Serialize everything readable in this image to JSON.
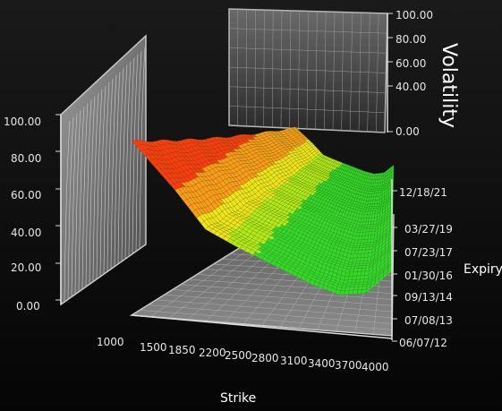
{
  "chart_data": {
    "type": "surface-3d",
    "x_axis": {
      "label": "Strike",
      "ticks": [
        "1000",
        "1500",
        "1850",
        "2200",
        "2500",
        "2800",
        "3100",
        "3400",
        "3700",
        "4000"
      ]
    },
    "y_axis": {
      "label": "Expiry",
      "ticks": [
        "06/07/12",
        "07/08/13",
        "09/13/14",
        "01/30/16",
        "07/23/17",
        "03/27/19",
        "12/18/21"
      ]
    },
    "z_axis": {
      "label": "Volatility",
      "ticks": [
        "0.00",
        "20.00",
        "40.00",
        "60.00",
        "80.00",
        "100.00"
      ],
      "range": [
        0,
        100
      ]
    },
    "back_wall_z_ticks": [
      "0.00",
      "40.00",
      "60.00",
      "80.00",
      "100.00"
    ],
    "volatility_by_strike": {
      "strikes": [
        1000,
        1500,
        1850,
        2200,
        2500,
        2800,
        3100,
        3400,
        3700,
        4000
      ],
      "values": [
        95,
        70,
        50,
        42,
        36,
        30,
        24,
        20,
        22,
        35
      ]
    },
    "colors": {
      "background": "#0b0b0b",
      "high": "#ff2a00",
      "mid": "#ffd21a",
      "low": "#2bd12b",
      "wall": "#8a8a8a"
    }
  }
}
